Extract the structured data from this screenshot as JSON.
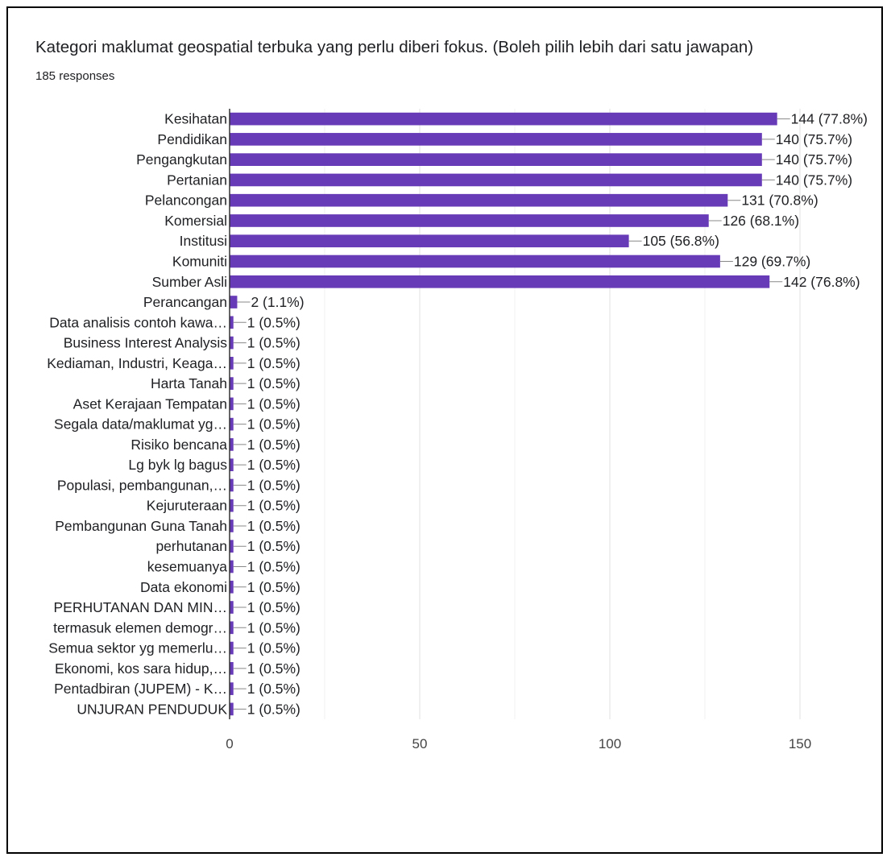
{
  "header": {
    "title": "Kategori maklumat geospatial terbuka yang perlu diberi fokus. (Boleh pilih lebih dari satu jawapan)",
    "responses": "185 responses"
  },
  "colors": {
    "bar": "#673ab7",
    "grid": "#e0e0e0",
    "axis": "#333333",
    "leader": "#888888"
  },
  "chart_data": {
    "type": "bar",
    "orientation": "horizontal",
    "title": "Kategori maklumat geospatial terbuka yang perlu diberi fokus. (Boleh pilih lebih dari satu jawapan)",
    "xlim": [
      0,
      150
    ],
    "xticks": [
      0,
      50,
      100,
      150
    ],
    "grid": true,
    "categories": [
      "Kesihatan",
      "Pendidikan",
      "Pengangkutan",
      "Pertanian",
      "Pelancongan",
      "Komersial",
      "Institusi",
      "Komuniti",
      "Sumber Asli",
      "Perancangan",
      "Data analisis contoh kawa…",
      "Business Interest Analysis",
      "Kediaman, Industri, Keaga…",
      "Harta Tanah",
      "Aset Kerajaan Tempatan",
      "Segala data/maklumat yg…",
      "Risiko bencana",
      "Lg byk lg bagus",
      "Populasi, pembangunan,…",
      "Kejuruteraan",
      "Pembangunan Guna Tanah",
      "perhutanan",
      "kesemuanya",
      "Data ekonomi",
      "PERHUTANAN DAN MIN…",
      "termasuk elemen demogr…",
      "Semua sektor yg memerlu…",
      "Ekonomi, kos sara hidup,…",
      "Pentadbiran (JUPEM) - K…",
      "UNJURAN PENDUDUK"
    ],
    "values": [
      144,
      140,
      140,
      140,
      131,
      126,
      105,
      129,
      142,
      2,
      1,
      1,
      1,
      1,
      1,
      1,
      1,
      1,
      1,
      1,
      1,
      1,
      1,
      1,
      1,
      1,
      1,
      1,
      1,
      1
    ],
    "value_labels": [
      "144 (77.8%)",
      "140 (75.7%)",
      "140 (75.7%)",
      "140 (75.7%)",
      "131 (70.8%)",
      "126 (68.1%)",
      "105 (56.8%)",
      "129 (69.7%)",
      "142 (76.8%)",
      "2 (1.1%)",
      "1 (0.5%)",
      "1 (0.5%)",
      "1 (0.5%)",
      "1 (0.5%)",
      "1 (0.5%)",
      "1 (0.5%)",
      "1 (0.5%)",
      "1 (0.5%)",
      "1 (0.5%)",
      "1 (0.5%)",
      "1 (0.5%)",
      "1 (0.5%)",
      "1 (0.5%)",
      "1 (0.5%)",
      "1 (0.5%)",
      "1 (0.5%)",
      "1 (0.5%)",
      "1 (0.5%)",
      "1 (0.5%)",
      "1 (0.5%)"
    ]
  }
}
